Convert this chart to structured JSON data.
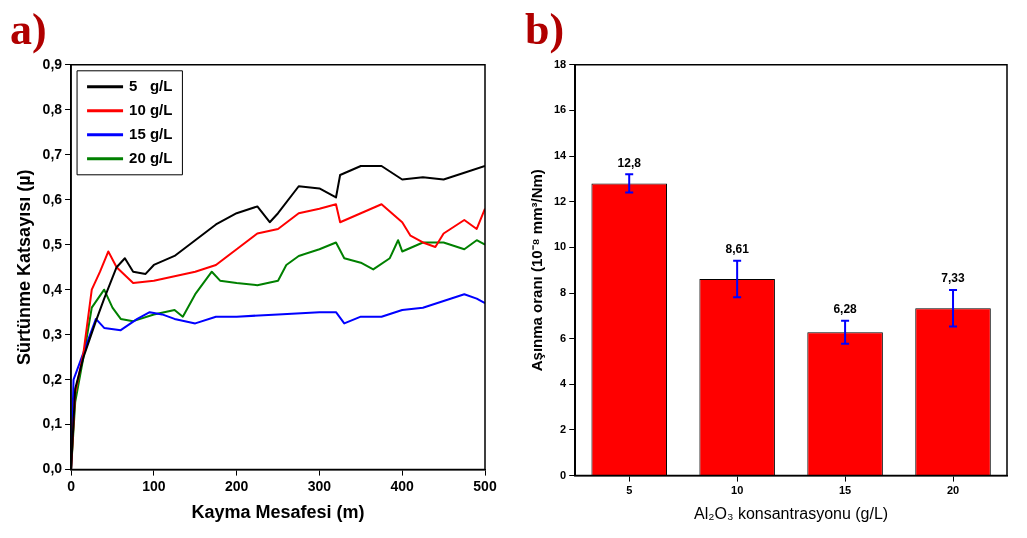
{
  "chart_data": [
    {
      "type": "line",
      "title": "a)",
      "xlabel": "Kayma Mesafesi (m)",
      "ylabel": "Sürtünme Katsayısı (µ)",
      "legend": "top left",
      "grid": false,
      "marker": "none",
      "line_style": "solid",
      "xlim": [
        0,
        500
      ],
      "xticks": [
        0,
        100,
        200,
        300,
        400,
        500
      ],
      "ylim": [
        0,
        0.9
      ],
      "yticks": [
        {
          "value": 0,
          "label": "0,0"
        },
        {
          "value": 0.1,
          "label": "0,1"
        },
        {
          "value": 0.2,
          "label": "0,2"
        },
        {
          "value": 0.3,
          "label": "0,3"
        },
        {
          "value": 0.4,
          "label": "0,4"
        },
        {
          "value": 0.5,
          "label": "0,5"
        },
        {
          "value": 0.6,
          "label": "0,6"
        },
        {
          "value": 0.7,
          "label": "0,7"
        },
        {
          "value": 0.8,
          "label": "0,8"
        },
        {
          "value": 0.9,
          "label": "0,9"
        }
      ],
      "series": [
        {
          "name": "5   g/L",
          "color": "#000000",
          "x": [
            0,
            5,
            15,
            30,
            40,
            55,
            65,
            75,
            90,
            100,
            125,
            150,
            175,
            200,
            225,
            240,
            250,
            275,
            300,
            320,
            325,
            350,
            375,
            400,
            425,
            450,
            475,
            500
          ],
          "values": [
            0,
            0.18,
            0.25,
            0.33,
            0.38,
            0.45,
            0.47,
            0.44,
            0.435,
            0.455,
            0.475,
            0.51,
            0.545,
            0.57,
            0.585,
            0.55,
            0.57,
            0.63,
            0.625,
            0.605,
            0.655,
            0.675,
            0.675,
            0.645,
            0.65,
            0.645,
            0.66,
            0.675
          ]
        },
        {
          "name": "10 g/L",
          "color": "#ff0000",
          "x": [
            0,
            5,
            15,
            25,
            35,
            45,
            55,
            75,
            100,
            125,
            150,
            175,
            200,
            225,
            250,
            275,
            300,
            320,
            325,
            350,
            375,
            400,
            410,
            425,
            440,
            450,
            475,
            490,
            500
          ],
          "values": [
            0,
            0.17,
            0.26,
            0.4,
            0.44,
            0.485,
            0.45,
            0.415,
            0.42,
            0.43,
            0.44,
            0.455,
            0.49,
            0.525,
            0.535,
            0.57,
            0.58,
            0.59,
            0.55,
            0.57,
            0.59,
            0.55,
            0.52,
            0.505,
            0.495,
            0.525,
            0.555,
            0.535,
            0.58
          ]
        },
        {
          "name": "15 g/L",
          "color": "#0000ff",
          "x": [
            0,
            3,
            15,
            30,
            40,
            60,
            80,
            95,
            110,
            125,
            150,
            175,
            200,
            250,
            300,
            320,
            330,
            350,
            375,
            400,
            425,
            450,
            475,
            490,
            500
          ],
          "values": [
            0,
            0.2,
            0.26,
            0.335,
            0.315,
            0.31,
            0.335,
            0.35,
            0.345,
            0.335,
            0.325,
            0.34,
            0.34,
            0.345,
            0.35,
            0.35,
            0.325,
            0.34,
            0.34,
            0.355,
            0.36,
            0.375,
            0.39,
            0.38,
            0.37
          ]
        },
        {
          "name": "20 g/L",
          "color": "#008000",
          "x": [
            0,
            5,
            15,
            25,
            40,
            50,
            60,
            75,
            100,
            125,
            135,
            150,
            170,
            180,
            200,
            225,
            250,
            260,
            275,
            300,
            320,
            330,
            350,
            365,
            385,
            395,
            400,
            425,
            450,
            475,
            490,
            500
          ],
          "values": [
            0,
            0.15,
            0.25,
            0.36,
            0.4,
            0.36,
            0.335,
            0.33,
            0.345,
            0.355,
            0.34,
            0.39,
            0.44,
            0.42,
            0.415,
            0.41,
            0.42,
            0.455,
            0.475,
            0.49,
            0.505,
            0.47,
            0.46,
            0.445,
            0.47,
            0.51,
            0.485,
            0.505,
            0.505,
            0.49,
            0.51,
            0.5
          ]
        }
      ]
    },
    {
      "type": "bar",
      "title": "b)",
      "xlabel": "Al₂O₃ konsantrasyonu (g/L)",
      "ylabel": "Aşınma oranı (10⁻⁸ mm³/Nm)",
      "grid": false,
      "categories": [
        "5",
        "10",
        "15",
        "20"
      ],
      "values": [
        12.8,
        8.61,
        6.28,
        7.33
      ],
      "color": "#ff0000",
      "errors": [
        0.4,
        0.8,
        0.5,
        0.8
      ],
      "value_labels": [
        "12,8",
        "8,61",
        "6,28",
        "7,33"
      ],
      "ylim": [
        0,
        18
      ],
      "yticks": [
        0,
        2,
        4,
        6,
        8,
        10,
        12,
        14,
        16,
        18
      ]
    }
  ]
}
